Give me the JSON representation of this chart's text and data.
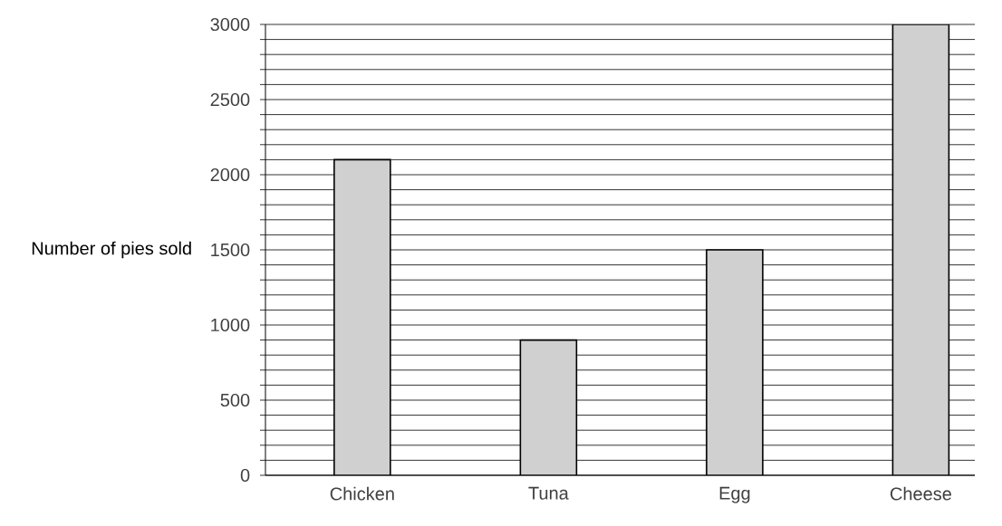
{
  "chart_data": {
    "type": "bar",
    "ylabel": "Number of pies sold",
    "categories": [
      "Chicken",
      "Tuna",
      "Egg",
      "Cheese"
    ],
    "values": [
      2100,
      900,
      1500,
      3000
    ],
    "color": "#d0d0d0",
    "ylim": [
      0,
      3000
    ],
    "yticks": [
      0,
      {
        "value": 100,
        "label": null
      },
      {
        "value": 200,
        "label": null
      },
      {
        "value": 300,
        "label": null
      },
      {
        "value": 400,
        "label": null
      },
      500,
      {
        "value": 600,
        "label": null
      },
      {
        "value": 700,
        "label": null
      },
      {
        "value": 800,
        "label": null
      },
      {
        "value": 900,
        "label": null
      },
      1000,
      {
        "value": 1100,
        "label": null
      },
      {
        "value": 1200,
        "label": null
      },
      {
        "value": 1300,
        "label": null
      },
      {
        "value": 1400,
        "label": null
      },
      1500,
      {
        "value": 1600,
        "label": null
      },
      {
        "value": 1700,
        "label": null
      },
      {
        "value": 1800,
        "label": null
      },
      {
        "value": 1900,
        "label": null
      },
      2000,
      {
        "value": 2100,
        "label": null
      },
      {
        "value": 2200,
        "label": null
      },
      {
        "value": 2300,
        "label": null
      },
      {
        "value": 2400,
        "label": null
      },
      2500,
      {
        "value": 2600,
        "label": null
      },
      {
        "value": 2700,
        "label": null
      },
      {
        "value": 2800,
        "label": null
      },
      {
        "value": 2900,
        "label": null
      },
      3000
    ],
    "grid": "y"
  }
}
